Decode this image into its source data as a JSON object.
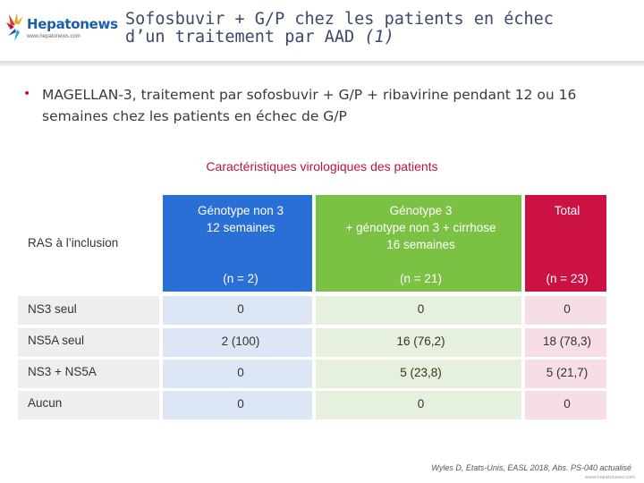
{
  "logo": {
    "name": "Hepatonews",
    "url": "www.hepatonews.com"
  },
  "title": {
    "line1": "Sofosbuvir + G/P chez les patients en échec",
    "line2": "d’un traitement par AAD",
    "ref": "(1)"
  },
  "intro": "MAGELLAN-3, traitement par sofosbuvir + G/P + ribavirine pendant 12 ou 16 semaines chez les patients en échec de G/P",
  "caption": "Caractéristiques virologiques des patients",
  "table": {
    "row_header": "RAS à l’inclusion",
    "columns": [
      {
        "l1": "Génotype non 3",
        "l2": "12 semaines",
        "l3": "",
        "n": "(n = 2)"
      },
      {
        "l1": "Génotype 3",
        "l2": "+ génotype non 3 + cirrhose",
        "l3": "16 semaines",
        "n": "(n = 21)"
      },
      {
        "l1": "Total",
        "l2": "",
        "l3": "",
        "n": "(n = 23)"
      }
    ],
    "rows": [
      {
        "label": "NS3 seul",
        "c1": "0",
        "c2": "0",
        "c3": "0"
      },
      {
        "label": "NS5A seul",
        "c1": "2 (100)",
        "c2": "16 (76,2)",
        "c3": "18 (78,3)"
      },
      {
        "label": "NS3 + NS5A",
        "c1": "0",
        "c2": "5 (23,8)",
        "c3": "5 (21,7)"
      },
      {
        "label": "Aucun",
        "c1": "0",
        "c2": "0",
        "c3": "0"
      }
    ]
  },
  "colors": {
    "col1": "#2a6fd6",
    "col2": "#7bc143",
    "col3": "#cc1245",
    "accent": "#c0143c"
  },
  "footer": "Wyles D, Etats-Unis, EASL 2018, Abs. PS-040 actualisé",
  "footer_url": "www.hepatonews.com"
}
